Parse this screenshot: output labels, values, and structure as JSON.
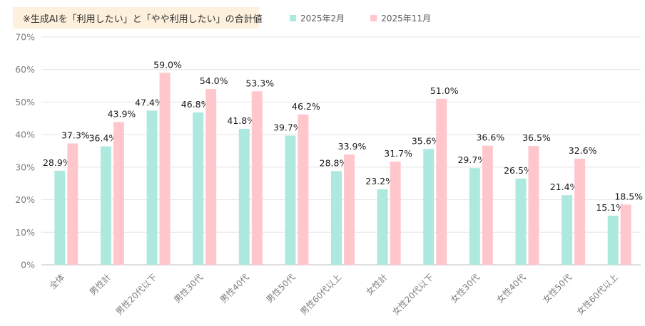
{
  "note": "※生成AIを「利用したい」と「やや利用したい」の合計値",
  "chart_data": {
    "type": "bar",
    "categories": [
      "全体",
      "男性計",
      "男性20代以下",
      "男性30代",
      "男性40代",
      "男性50代",
      "男性60代以上",
      "女性計",
      "女性20代以下",
      "女性30代",
      "女性40代",
      "女性50代",
      "女性60代以上"
    ],
    "series": [
      {
        "name": "2025年2月",
        "color": "#aee9df",
        "values": [
          28.9,
          36.4,
          47.4,
          46.8,
          41.8,
          39.7,
          28.8,
          23.2,
          35.6,
          29.7,
          26.5,
          21.4,
          15.1
        ],
        "labels": [
          "28.9%",
          "36.4%",
          "47.4%",
          "46.8%",
          "41.8%",
          "39.7%",
          "28.8%",
          "23.2%",
          "35.6%",
          "29.7%",
          "26.5%",
          "21.4%",
          "15.1%"
        ]
      },
      {
        "name": "2025年11月",
        "color": "#ffc7cc",
        "values": [
          37.3,
          43.9,
          59.0,
          54.0,
          53.3,
          46.2,
          33.9,
          31.7,
          51.0,
          36.6,
          36.5,
          32.6,
          18.5
        ],
        "labels": [
          "37.3%",
          "43.9%",
          "59.0%",
          "54.0%",
          "53.3%",
          "46.2%",
          "33.9%",
          "31.7%",
          "51.0%",
          "36.6%",
          "36.5%",
          "32.6%",
          "18.5%"
        ]
      }
    ],
    "ylim": [
      0,
      70
    ],
    "yticks": [
      0,
      10,
      20,
      30,
      40,
      50,
      60,
      70
    ],
    "ytick_labels": [
      "0%",
      "10%",
      "20%",
      "30%",
      "40%",
      "50%",
      "60%",
      "70%"
    ],
    "grid": true,
    "legend_position": "top",
    "title": "",
    "xlabel": "",
    "ylabel": ""
  }
}
